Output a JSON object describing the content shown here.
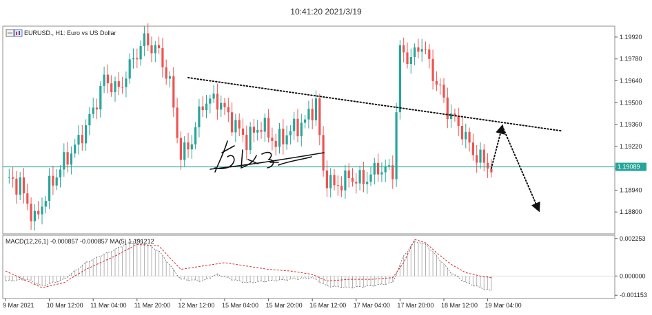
{
  "timestamp": "10:41:20 2021/3/19",
  "chart_data": [
    {
      "type": "candlestick",
      "title": "EURUSD., H1:  Euro vs US Dollar",
      "symbol_icon": "chart-window-icon",
      "colors": {
        "bull": "#26a69a",
        "bear": "#ef5350",
        "current_price_line": "#26a69a",
        "annotation": "#111111"
      },
      "ylim": [
        1.1866,
        1.1999
      ],
      "y_ticks": [
        "1.19920",
        "1.19780",
        "1.19640",
        "1.19500",
        "1.19360",
        "1.19220",
        "1.19080",
        "1.18940",
        "1.18800"
      ],
      "y_tick_values": [
        1.1992,
        1.1978,
        1.1964,
        1.195,
        1.1936,
        1.1922,
        1.1908,
        1.1894,
        1.188
      ],
      "current_price": "1.19089",
      "current_price_value": 1.19089,
      "x_ticks": [
        "9 Mar 2021",
        "10 Mar 12:00",
        "11 Mar 04:00",
        "11 Mar 20:00",
        "12 Mar 12:00",
        "15 Mar 04:00",
        "15 Mar 20:00",
        "16 Mar 12:00",
        "17 Mar 04:00",
        "17 Mar 20:00",
        "18 Mar 12:00",
        "19 Mar 04:00"
      ],
      "x_tick_bar_index": [
        0,
        12,
        24,
        36,
        48,
        60,
        72,
        84,
        96,
        108,
        120,
        132
      ],
      "anchors": [
        [
          0,
          1.1902
        ],
        [
          4,
          1.1897
        ],
        [
          8,
          1.1874
        ],
        [
          12,
          1.1896
        ],
        [
          16,
          1.1912
        ],
        [
          20,
          1.1925
        ],
        [
          24,
          1.1945
        ],
        [
          27,
          1.1965
        ],
        [
          31,
          1.1958
        ],
        [
          35,
          1.1978
        ],
        [
          38,
          1.199
        ],
        [
          42,
          1.1982
        ],
        [
          45,
          1.1962
        ],
        [
          48,
          1.1915
        ],
        [
          51,
          1.1926
        ],
        [
          54,
          1.195
        ],
        [
          58,
          1.1952
        ],
        [
          62,
          1.1938
        ],
        [
          66,
          1.1926
        ],
        [
          70,
          1.1936
        ],
        [
          74,
          1.1924
        ],
        [
          78,
          1.1932
        ],
        [
          82,
          1.1938
        ],
        [
          85,
          1.195
        ],
        [
          87,
          1.1905
        ],
        [
          90,
          1.1896
        ],
        [
          94,
          1.1902
        ],
        [
          98,
          1.19
        ],
        [
          102,
          1.1908
        ],
        [
          106,
          1.1906
        ],
        [
          108,
          1.1983
        ],
        [
          111,
          1.1978
        ],
        [
          114,
          1.1988
        ],
        [
          117,
          1.1968
        ],
        [
          119,
          1.1958
        ],
        [
          121,
          1.1945
        ],
        [
          125,
          1.1932
        ],
        [
          128,
          1.1918
        ],
        [
          131,
          1.1912
        ],
        [
          133,
          1.1908
        ]
      ],
      "annotations": [
        {
          "type": "trendline",
          "style": "dotted",
          "points": [
            [
              50,
              1.1966
            ],
            [
              152,
              1.1932
            ]
          ]
        },
        {
          "type": "arrow",
          "style": "dotted",
          "points": [
            [
              133,
              1.1908
            ],
            [
              136,
              1.1935
            ]
          ]
        },
        {
          "type": "arrow",
          "style": "dotted",
          "points": [
            [
              136,
              1.1935
            ],
            [
              146,
              1.1881
            ]
          ]
        }
      ]
    },
    {
      "type": "line",
      "indicator": "MACD",
      "label": "MACD(12,26,1) -0.000857 -0.000857 MA(5) 1.191212",
      "ylim": [
        -0.00135,
        0.00245
      ],
      "y_ticks": [
        "0.002253",
        "0.000000",
        "-0.001153"
      ],
      "y_tick_values": [
        0.002253,
        0.0,
        -0.001153
      ],
      "histogram_anchors": [
        [
          0,
          -0.0003
        ],
        [
          6,
          -0.0002
        ],
        [
          10,
          -0.0006
        ],
        [
          16,
          -0.0002
        ],
        [
          22,
          0.0008
        ],
        [
          30,
          0.0016
        ],
        [
          36,
          0.0022
        ],
        [
          42,
          0.0015
        ],
        [
          48,
          -0.0002
        ],
        [
          54,
          -0.0003
        ],
        [
          58,
          0.0001
        ],
        [
          62,
          -0.0002
        ],
        [
          66,
          -0.0004
        ],
        [
          72,
          -0.0003
        ],
        [
          78,
          -0.0002
        ],
        [
          84,
          -0.0001
        ],
        [
          88,
          -0.0006
        ],
        [
          94,
          -0.0007
        ],
        [
          100,
          -0.0006
        ],
        [
          106,
          -0.0004
        ],
        [
          109,
          0.0012
        ],
        [
          112,
          0.0021
        ],
        [
          115,
          0.0019
        ],
        [
          118,
          0.0012
        ],
        [
          122,
          0.0002
        ],
        [
          126,
          -0.0004
        ],
        [
          130,
          -0.0007
        ],
        [
          133,
          -0.0009
        ]
      ],
      "signal_anchors": [
        [
          0,
          0.0003
        ],
        [
          6,
          -0.0003
        ],
        [
          10,
          -0.0007
        ],
        [
          16,
          -0.0004
        ],
        [
          22,
          0.0004
        ],
        [
          30,
          0.0012
        ],
        [
          36,
          0.0019
        ],
        [
          42,
          0.0018
        ],
        [
          48,
          0.0004
        ],
        [
          54,
          0.0006
        ],
        [
          60,
          0.0008
        ],
        [
          66,
          0.0006
        ],
        [
          72,
          0.0004
        ],
        [
          78,
          0.0003
        ],
        [
          84,
          0.0001
        ],
        [
          88,
          -0.0003
        ],
        [
          94,
          -0.0002
        ],
        [
          100,
          -0.0002
        ],
        [
          106,
          -0.0001
        ],
        [
          109,
          0.0008
        ],
        [
          112,
          0.0022
        ],
        [
          115,
          0.002
        ],
        [
          118,
          0.0014
        ],
        [
          122,
          0.0007
        ],
        [
          126,
          0.0002
        ],
        [
          130,
          0.0
        ],
        [
          133,
          -0.0001
        ]
      ]
    }
  ]
}
